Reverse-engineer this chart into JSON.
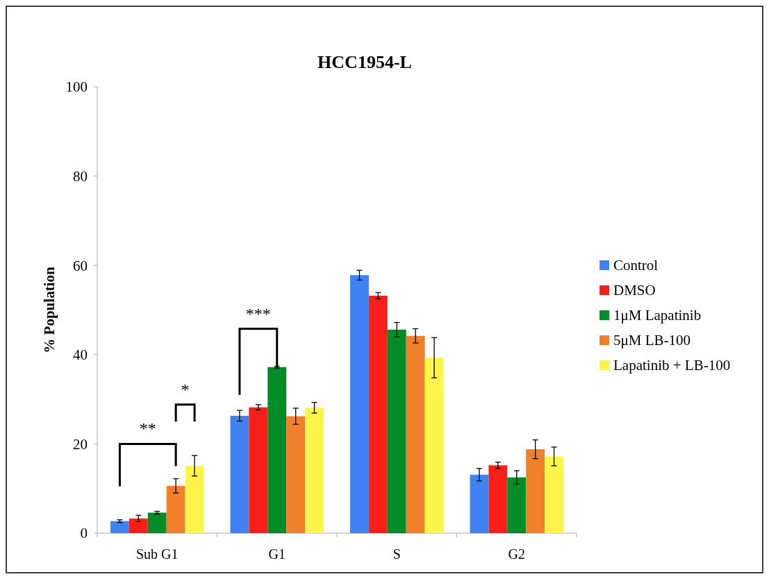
{
  "chart_data": {
    "type": "bar",
    "title": "HCC1954-L",
    "ylabel": "% Population",
    "categories": [
      "Sub G1",
      "G1",
      "S",
      "G2"
    ],
    "series": [
      {
        "name": "Control",
        "color": "#3f82f2",
        "values": [
          2.7,
          26.3,
          57.8,
          13.1
        ],
        "errors": [
          0.3,
          1.2,
          1.1,
          1.4
        ]
      },
      {
        "name": "DMSO",
        "color": "#fb1f1a",
        "values": [
          3.3,
          28.2,
          53.2,
          15.2
        ],
        "errors": [
          0.7,
          0.6,
          0.7,
          0.7
        ]
      },
      {
        "name": "1μM Lapatinib",
        "color": "#008d28",
        "values": [
          4.6,
          37.2,
          45.6,
          12.5
        ],
        "errors": [
          0.3,
          0.2,
          1.6,
          1.5
        ]
      },
      {
        "name": "5μM LB-100",
        "color": "#f0802c",
        "values": [
          10.6,
          26.2,
          44.2,
          18.8
        ],
        "errors": [
          1.6,
          1.8,
          1.6,
          2.1
        ]
      },
      {
        "name": "Lapatinib + LB-100",
        "color": "#fdf54a",
        "values": [
          15.1,
          28.1,
          39.3,
          17.2
        ],
        "errors": [
          2.3,
          1.2,
          4.5,
          2.1
        ]
      }
    ],
    "ylim": [
      0,
      100
    ],
    "yticks": [
      0,
      20,
      40,
      60,
      80,
      100
    ],
    "grid": false,
    "legend": "right",
    "annotations": [
      "**",
      "*",
      "***"
    ]
  }
}
